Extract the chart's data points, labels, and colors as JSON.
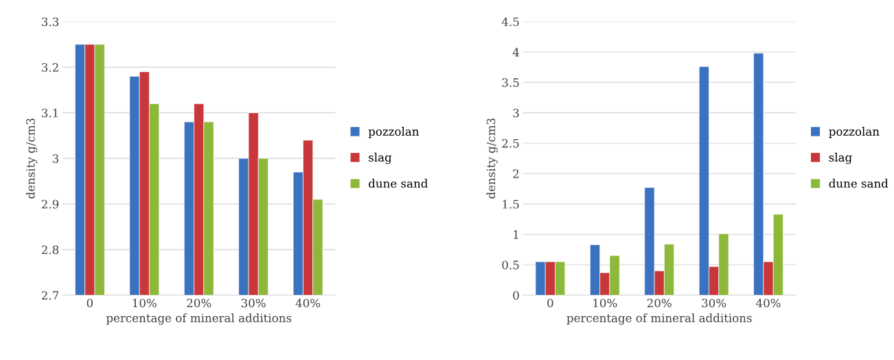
{
  "chart_data": [
    {
      "type": "bar",
      "xlabel": "percentage of mineral additions",
      "ylabel": "density g/cm3",
      "categories": [
        "0",
        "10%",
        "20%",
        "30%",
        "40%"
      ],
      "series": [
        {
          "name": "pozzolan",
          "color": "#3a72c0",
          "values": [
            3.25,
            3.18,
            3.08,
            3.0,
            2.97
          ]
        },
        {
          "name": "slag",
          "color": "#c8383a",
          "values": [
            3.25,
            3.19,
            3.12,
            3.1,
            3.04
          ]
        },
        {
          "name": "dune sand",
          "color": "#8db83a",
          "values": [
            3.25,
            3.12,
            3.08,
            3.0,
            2.91
          ]
        }
      ],
      "ylim": [
        2.7,
        3.3
      ],
      "yticks": [
        {
          "value": 2.7,
          "label": "2.7"
        },
        {
          "value": 2.8,
          "label": "2.8"
        },
        {
          "value": 2.9,
          "label": "2.9"
        },
        {
          "value": 3.0,
          "label": "3"
        },
        {
          "value": 3.1,
          "label": "3.1"
        },
        {
          "value": 3.2,
          "label": "3.2"
        },
        {
          "value": 3.3,
          "label": "3.3"
        }
      ],
      "grid": "y",
      "legend": "right"
    },
    {
      "type": "bar",
      "xlabel": "percentage of mineral additions",
      "ylabel": "density g/cm3",
      "categories": [
        "0",
        "10%",
        "20%",
        "30%",
        "40%"
      ],
      "series": [
        {
          "name": "pozzolan",
          "color": "#3a72c0",
          "values": [
            0.55,
            0.83,
            1.77,
            3.76,
            3.98
          ]
        },
        {
          "name": "slag",
          "color": "#c8383a",
          "values": [
            0.55,
            0.37,
            0.4,
            0.47,
            0.55
          ]
        },
        {
          "name": "dune sand",
          "color": "#8db83a",
          "values": [
            0.55,
            0.65,
            0.84,
            1.01,
            1.33
          ]
        }
      ],
      "ylim": [
        0,
        4.5
      ],
      "yticks": [
        0,
        0.5,
        1,
        1.5,
        2,
        2.5,
        3,
        3.5,
        4,
        4.5
      ],
      "grid": "y",
      "legend": "right"
    }
  ]
}
